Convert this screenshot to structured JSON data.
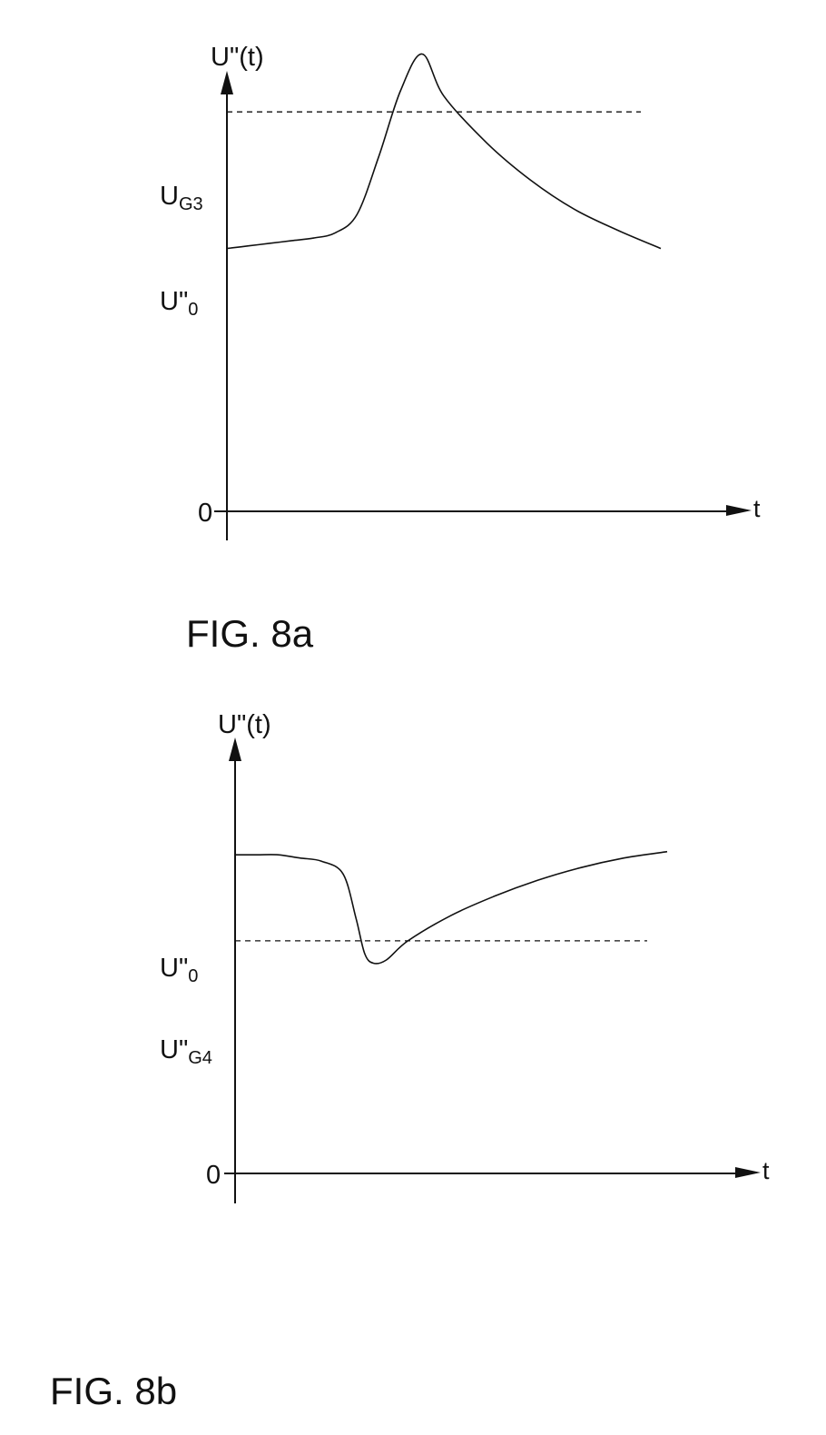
{
  "figures": [
    {
      "caption": "FIG. 8a",
      "y_axis_label": "U\"(t)",
      "x_axis_label": "t",
      "y_ticks": [
        {
          "main": "U",
          "sub": "G3"
        },
        {
          "main": "U\"",
          "sub": "0"
        },
        {
          "main": "0",
          "sub": ""
        }
      ]
    },
    {
      "caption": "FIG. 8b",
      "y_axis_label": "U\"(t)",
      "x_axis_label": "t",
      "y_ticks": [
        {
          "main": "U\"",
          "sub": "0"
        },
        {
          "main": "U\"",
          "sub": "G4"
        },
        {
          "main": "0",
          "sub": ""
        }
      ]
    }
  ],
  "chart_data": [
    {
      "type": "line",
      "title": "FIG. 8a",
      "xlabel": "t",
      "ylabel": "U\"(t)",
      "ylim": [
        0,
        1.6
      ],
      "reference_lines": [
        {
          "label": "U_G3",
          "y": 1.52,
          "style": "dashed"
        },
        {
          "label": "U\"0",
          "y": 1.0,
          "style": "solid-tick"
        }
      ],
      "series": [
        {
          "x": [
            0,
            0.5,
            1.0,
            1.5,
            2.0,
            2.5,
            3.0,
            3.5,
            4.0,
            4.5,
            5.0,
            6.0,
            7.0,
            8.0,
            9.0,
            10.0
          ],
          "y": [
            1.0,
            1.01,
            1.02,
            1.03,
            1.04,
            1.06,
            1.13,
            1.35,
            1.6,
            1.74,
            1.58,
            1.4,
            1.26,
            1.15,
            1.07,
            1.0
          ]
        }
      ]
    },
    {
      "type": "line",
      "title": "FIG. 8b",
      "xlabel": "t",
      "ylabel": "U\"(t)",
      "ylim": [
        0,
        1.3
      ],
      "reference_lines": [
        {
          "label": "U\"0",
          "y": 1.0,
          "style": "solid-tick"
        },
        {
          "label": "U\"G4",
          "y": 0.73,
          "style": "dashed"
        }
      ],
      "series": [
        {
          "x": [
            0,
            0.5,
            1.0,
            1.5,
            2.0,
            2.5,
            2.8,
            3.0,
            3.2,
            3.5,
            4.0,
            5.0,
            6.0,
            7.0,
            8.0,
            9.0,
            10.0
          ],
          "y": [
            1.0,
            1.0,
            1.0,
            0.99,
            0.98,
            0.94,
            0.8,
            0.69,
            0.66,
            0.67,
            0.73,
            0.81,
            0.87,
            0.92,
            0.96,
            0.99,
            1.01
          ]
        }
      ]
    }
  ]
}
